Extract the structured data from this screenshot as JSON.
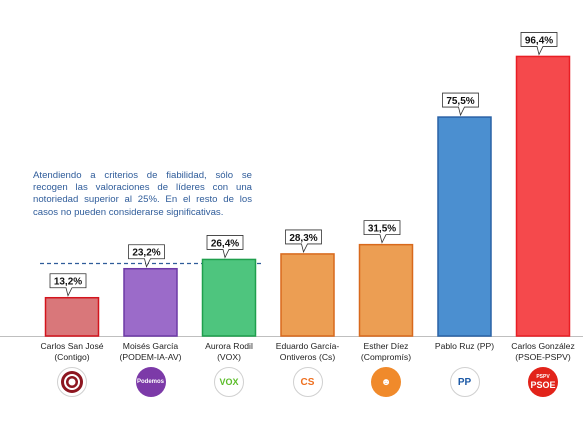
{
  "chart_data": {
    "type": "bar",
    "categories": [
      [
        "Carlos San José",
        "(Contigo)"
      ],
      [
        "Moisés García",
        "(PODEM-IA-AV)"
      ],
      [
        "Aurora Rodil",
        "(VOX)"
      ],
      [
        "Eduardo García-",
        "Ontiveros (Cs)"
      ],
      [
        "Esther Díez",
        "(Compromís)"
      ],
      [
        "Pablo Ruz (PP)"
      ],
      [
        "Carlos González",
        "(PSOE-PSPV)"
      ]
    ],
    "values": [
      13.2,
      23.2,
      26.4,
      28.3,
      31.5,
      75.5,
      96.4
    ],
    "value_labels": [
      "13,2%",
      "23,2%",
      "26,4%",
      "28,3%",
      "31,5%",
      "75,5%",
      "96,4%"
    ],
    "colors": [
      "#d9777a",
      "#9b6bc9",
      "#4ec57e",
      "#ec9e53",
      "#ec9e53",
      "#4b8fd0",
      "#f5494c"
    ],
    "border_colors": [
      "#d3141d",
      "#6d3aa6",
      "#1f9f4d",
      "#d8691c",
      "#d8691c",
      "#2a62a6",
      "#e81e24"
    ],
    "threshold": 25,
    "ylim": [
      0,
      100
    ],
    "grid": false,
    "legend": "none"
  },
  "note": "Atendiendo a criterios de fiabilidad, sólo se recogen las valoraciones de líderes con una notoriedad superior al 25%. En el resto de los casos no pueden considerarse significativas.",
  "logos": [
    {
      "icon": "contigo-logo-icon",
      "bg": "#ffffff",
      "color": "#8d1620",
      "text": ""
    },
    {
      "icon": "podemos-logo-icon",
      "bg": "#7c3aa8",
      "color": "#ffffff",
      "text": "Podemos"
    },
    {
      "icon": "vox-logo-icon",
      "bg": "#ffffff",
      "color": "#5bbd2a",
      "text": "VOX"
    },
    {
      "icon": "cs-logo-icon",
      "bg": "#ffffff",
      "color": "#ee6f1f",
      "text": "CS"
    },
    {
      "icon": "compromis-logo-icon",
      "bg": "#f08a2b",
      "color": "#ffffff",
      "text": "☻"
    },
    {
      "icon": "pp-logo-icon",
      "bg": "#ffffff",
      "color": "#1c59a6",
      "text": "PP"
    },
    {
      "icon": "psoe-logo-icon",
      "bg": "#e2231a",
      "color": "#ffffff",
      "text": "PSOE",
      "subtext": "PSPV"
    }
  ]
}
